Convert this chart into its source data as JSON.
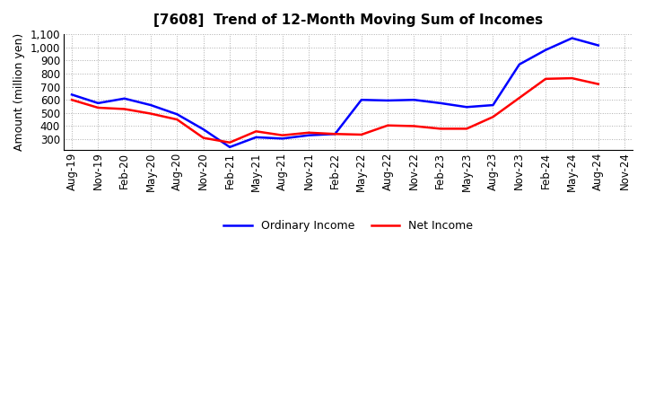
{
  "title": "[7608]  Trend of 12-Month Moving Sum of Incomes",
  "ylabel": "Amount (million yen)",
  "x_labels": [
    "Aug-19",
    "Nov-19",
    "Feb-20",
    "May-20",
    "Aug-20",
    "Nov-20",
    "Feb-21",
    "May-21",
    "Aug-21",
    "Nov-21",
    "Feb-22",
    "May-22",
    "Aug-22",
    "Nov-22",
    "Feb-23",
    "May-23",
    "Aug-23",
    "Nov-23",
    "Feb-24",
    "May-24",
    "Aug-24",
    "Nov-24"
  ],
  "ordinary_income": [
    640,
    575,
    610,
    560,
    490,
    375,
    240,
    315,
    305,
    330,
    340,
    600,
    595,
    600,
    575,
    545,
    560,
    870,
    980,
    1070,
    1015,
    null
  ],
  "net_income": [
    600,
    540,
    530,
    495,
    450,
    310,
    275,
    360,
    330,
    350,
    340,
    335,
    405,
    400,
    380,
    380,
    470,
    615,
    760,
    765,
    720,
    null
  ],
  "ordinary_color": "#0000ff",
  "net_color": "#ff0000",
  "ylim_min": 220,
  "ylim_max": 1100,
  "yticks": [
    300,
    400,
    500,
    600,
    700,
    800,
    900,
    1000,
    1100
  ],
  "background_color": "#ffffff",
  "grid_color": "#999999",
  "title_fontsize": 11,
  "axis_label_fontsize": 9,
  "tick_fontsize": 8.5,
  "legend_fontsize": 9,
  "linewidth": 1.8
}
